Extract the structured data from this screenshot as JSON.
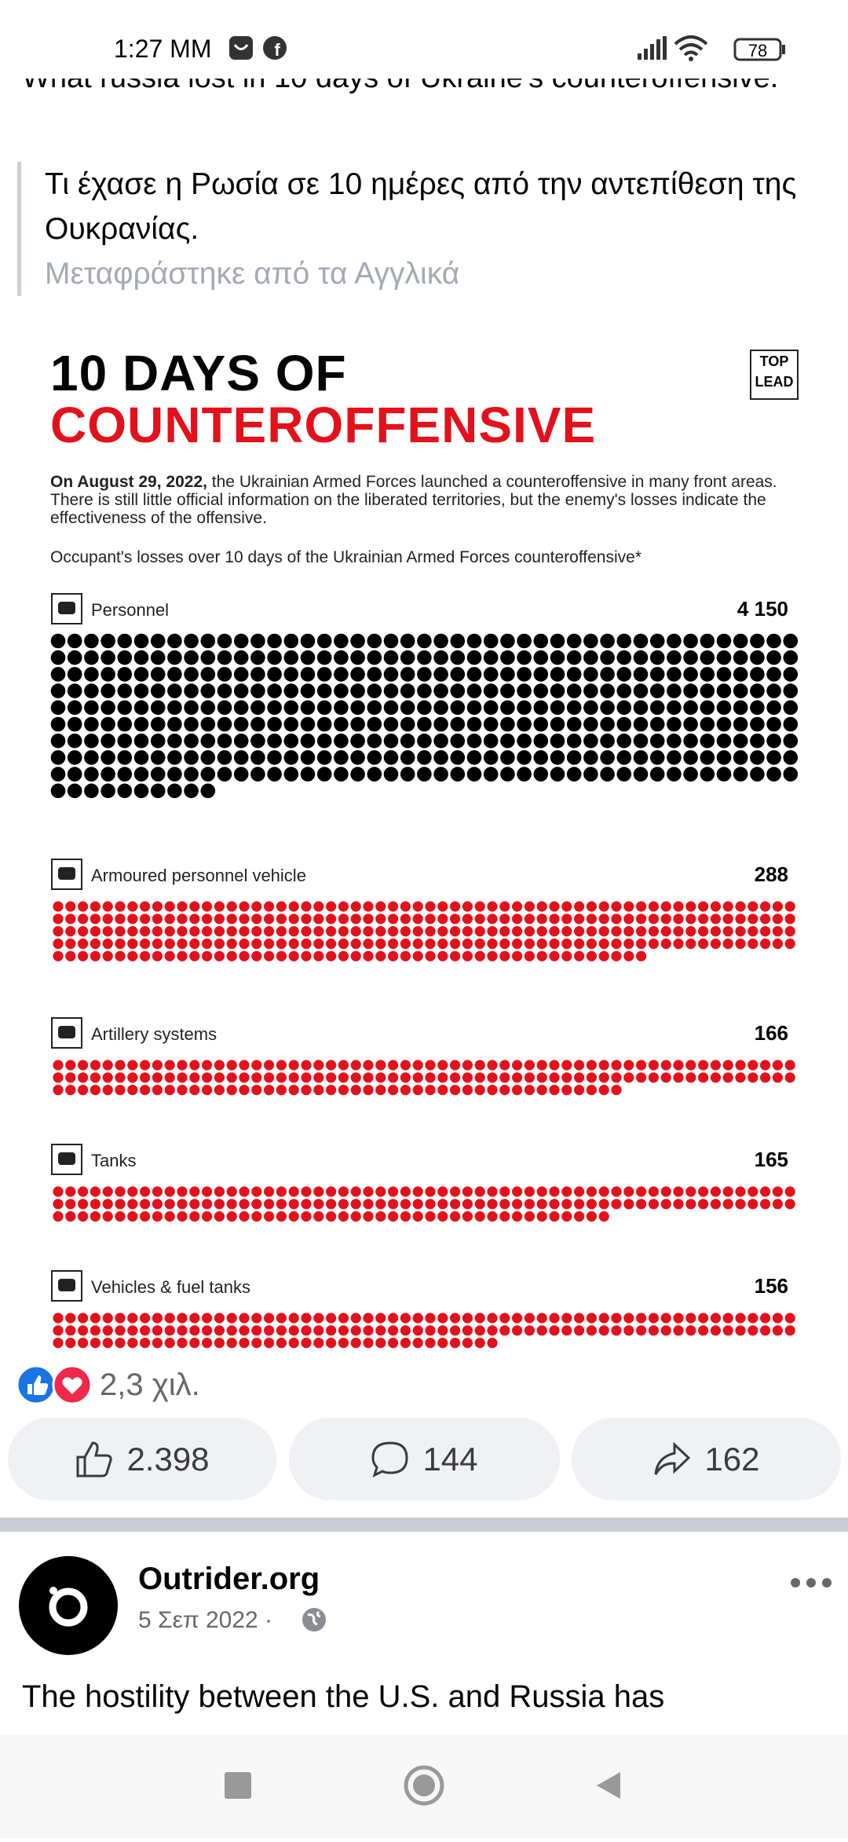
{
  "status_bar": {
    "time": "1:27 MM",
    "battery": "78"
  },
  "post": {
    "text": "What russia lost in 10 days of Ukraine's counteroffensive.",
    "translation": "Τι έχασε η Ρωσία σε 10 ημέρες από την αντεπίθεση της Ουκρανίας.",
    "translation_note": "Μεταφράστηκε από τα Αγγλικά"
  },
  "infographic": {
    "title_line1": "10 DAYS OF",
    "title_line2": "COUNTEROFFENSIVE",
    "logo_top": "TOP",
    "logo_bottom": "LEAD",
    "description_lead": "On August 29, 2022,",
    "description": "the Ukrainian Armed Forces launched a counteroffensive in many front areas. There is still little official information on the liberated territories, but the enemy's losses indicate the effectiveness of the offensive.",
    "subtitle": "Occupant's losses over 10 days of the Ukrainian Armed Forces counteroffensive*",
    "categories": [
      "Personnel",
      "Armoured personnel vehicle",
      "Artillery systems",
      "Tanks",
      "Vehicles & fuel tanks"
    ],
    "values": [
      4150,
      288,
      166,
      165,
      156
    ],
    "value_labels": [
      "4 150",
      "288",
      "166",
      "165",
      "156"
    ],
    "colors": [
      "#000000",
      "#e3111b",
      "#e3111b",
      "#e3111b",
      "#e3111b"
    ]
  },
  "reactions": {
    "summary": "2,3 χιλ.",
    "likes": "2.398",
    "comments": "144",
    "shares": "162"
  },
  "next_post": {
    "author": "Outrider.org",
    "date": "5 Σεπ 2022",
    "text": "The hostility between the U.S. and Russia has"
  }
}
